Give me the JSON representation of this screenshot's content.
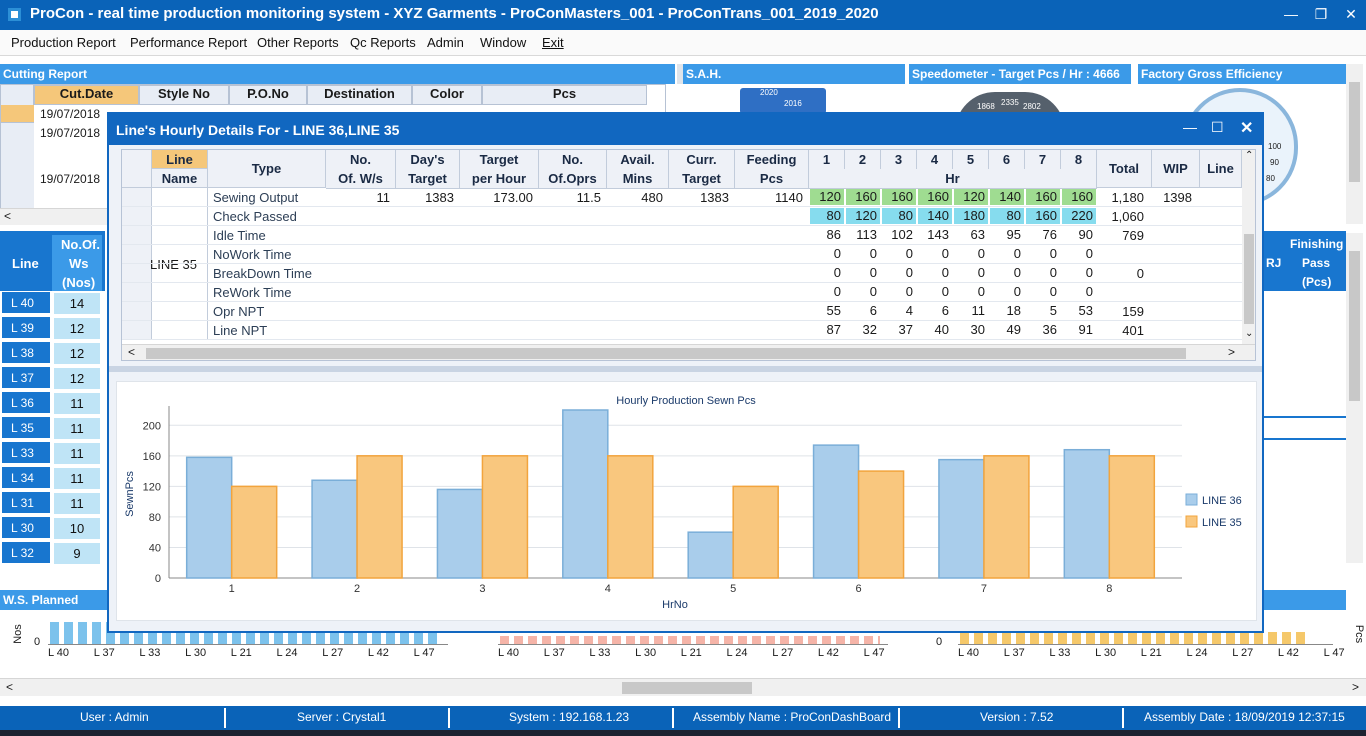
{
  "window": {
    "title": "ProCon - real time production monitoring system - XYZ Garments - ProConMasters_001 - ProConTrans_001_2019_2020"
  },
  "menu": [
    "Production Report",
    "Performance Report",
    "Other Reports",
    "Qc Reports",
    "Admin",
    "Window",
    "Exit"
  ],
  "panels": {
    "cutting_report": "Cutting Report",
    "sah": "S.A.H.",
    "speedometer": "Speedometer - Target Pcs / Hr : 4666",
    "factory_eff": "Factory Gross Efficiency",
    "ws_planned": "W.S. Planned",
    "finishing": "Finishing"
  },
  "cutting": {
    "headers": [
      "Cut.Date",
      "Style No",
      "P.O.No",
      "Destination",
      "Color",
      "Pcs"
    ],
    "dates": [
      "19/07/2018",
      "19/07/2018",
      "19/07/2018"
    ]
  },
  "left_table": {
    "head": {
      "line": "Line",
      "no_of": "No.Of.",
      "ws": "Ws",
      "nos": "(Nos)"
    },
    "rows": [
      {
        "line": "L 40",
        "ws": "14"
      },
      {
        "line": "L 39",
        "ws": "12"
      },
      {
        "line": "L 38",
        "ws": "12"
      },
      {
        "line": "L 37",
        "ws": "12"
      },
      {
        "line": "L 36",
        "ws": "11"
      },
      {
        "line": "L 35",
        "ws": "11"
      },
      {
        "line": "L 33",
        "ws": "11"
      },
      {
        "line": "L 34",
        "ws": "11"
      },
      {
        "line": "L 31",
        "ws": "11"
      },
      {
        "line": "L 30",
        "ws": "10"
      },
      {
        "line": "L 32",
        "ws": "9"
      }
    ]
  },
  "finishing_head": {
    "rj": "RJ",
    "pass": "Pass",
    "pcs": "(Pcs)"
  },
  "gauges": {
    "sah_val1": "2020",
    "sah_val2": "2016",
    "speedo_ticks": [
      "1868",
      "2335",
      "2802"
    ],
    "eff_ticks": [
      "100",
      "90",
      "80"
    ]
  },
  "modal": {
    "title": "Line's Hourly Details For - LINE 36,LINE 35",
    "headers": {
      "line": "Line",
      "name": "Name",
      "type": "Type",
      "no1": "No.",
      "ofws": "Of. W/s",
      "days": "Day's",
      "target": "Target",
      "target2": "Target",
      "perhour": "per Hour",
      "no2": "No.",
      "ofoprs": "Of.Oprs",
      "avail": "Avail.",
      "mins": "Mins",
      "curr": "Curr.",
      "target3": "Target",
      "feeding": "Feeding",
      "pcs": "Pcs",
      "hours": [
        "1",
        "2",
        "3",
        "4",
        "5",
        "6",
        "7",
        "8"
      ],
      "hr": "Hr",
      "total": "Total",
      "wip": "WIP",
      "line_trunc": "Line"
    },
    "line_name": "LINE 35",
    "rows": [
      {
        "type": "Sewing Output",
        "ofws": "11",
        "days_target": "1383",
        "per_hour": "173.00",
        "oprs": "11.5",
        "mins": "480",
        "curr_target": "1383",
        "feeding": "1140",
        "hours": [
          "120",
          "160",
          "160",
          "160",
          "120",
          "140",
          "160",
          "160"
        ],
        "total": "1,180",
        "wip": "1398",
        "style": "g"
      },
      {
        "type": "Check Passed",
        "ofws": "",
        "days_target": "",
        "per_hour": "",
        "oprs": "",
        "mins": "",
        "curr_target": "",
        "feeding": "",
        "hours": [
          "80",
          "120",
          "80",
          "140",
          "180",
          "80",
          "160",
          "220"
        ],
        "total": "1,060",
        "wip": "",
        "style": "b"
      },
      {
        "type": "Idle Time",
        "ofws": "",
        "days_target": "",
        "per_hour": "",
        "oprs": "",
        "mins": "",
        "curr_target": "",
        "feeding": "",
        "hours": [
          "86",
          "113",
          "102",
          "143",
          "63",
          "95",
          "76",
          "90"
        ],
        "total": "769",
        "wip": "",
        "style": ""
      },
      {
        "type": "NoWork Time",
        "ofws": "",
        "days_target": "",
        "per_hour": "",
        "oprs": "",
        "mins": "",
        "curr_target": "",
        "feeding": "",
        "hours": [
          "0",
          "0",
          "0",
          "0",
          "0",
          "0",
          "0",
          "0"
        ],
        "total": "",
        "wip": "",
        "style": ""
      },
      {
        "type": "BreakDown Time",
        "ofws": "",
        "days_target": "",
        "per_hour": "",
        "oprs": "",
        "mins": "",
        "curr_target": "",
        "feeding": "",
        "hours": [
          "0",
          "0",
          "0",
          "0",
          "0",
          "0",
          "0",
          "0"
        ],
        "total": "0",
        "wip": "",
        "style": ""
      },
      {
        "type": "ReWork Time",
        "ofws": "",
        "days_target": "",
        "per_hour": "",
        "oprs": "",
        "mins": "",
        "curr_target": "",
        "feeding": "",
        "hours": [
          "0",
          "0",
          "0",
          "0",
          "0",
          "0",
          "0",
          "0"
        ],
        "total": "",
        "wip": "",
        "style": ""
      },
      {
        "type": "Opr NPT",
        "ofws": "",
        "days_target": "",
        "per_hour": "",
        "oprs": "",
        "mins": "",
        "curr_target": "",
        "feeding": "",
        "hours": [
          "55",
          "6",
          "4",
          "6",
          "11",
          "18",
          "5",
          "53"
        ],
        "total": "159",
        "wip": "",
        "style": ""
      },
      {
        "type": "Line NPT",
        "ofws": "",
        "days_target": "",
        "per_hour": "",
        "oprs": "",
        "mins": "",
        "curr_target": "",
        "feeding": "",
        "hours": [
          "87",
          "32",
          "37",
          "40",
          "30",
          "49",
          "36",
          "91"
        ],
        "total": "401",
        "wip": "",
        "style": ""
      }
    ]
  },
  "chart_data": {
    "type": "bar",
    "title": "Hourly Production Sewn Pcs",
    "xlabel": "HrNo",
    "ylabel": "SewnPcs",
    "categories": [
      "1",
      "2",
      "3",
      "4",
      "5",
      "6",
      "7",
      "8"
    ],
    "ylim": [
      0,
      220
    ],
    "yticks": [
      0,
      40,
      80,
      120,
      160,
      200
    ],
    "legend_position": "right",
    "series": [
      {
        "name": "LINE 36",
        "color": "#a9cdeb",
        "stroke": "#7aaed8",
        "values": [
          158,
          128,
          116,
          220,
          60,
          174,
          155,
          168
        ]
      },
      {
        "name": "LINE 35",
        "color": "#f9c77e",
        "stroke": "#f2a43d",
        "values": [
          120,
          160,
          160,
          160,
          120,
          140,
          160,
          160
        ]
      }
    ]
  },
  "bottom_axis_labels": [
    "L 40",
    "L 37",
    "L 33",
    "L 30",
    "L 21",
    "L 24",
    "L 27",
    "L 42",
    "L 47"
  ],
  "bottom": {
    "nos": "Nos",
    "zero": "0",
    "pcs": "Pcs"
  },
  "status": {
    "user": "User : Admin",
    "server": "Server : Crystal1",
    "system": "System : 192.168.1.23",
    "assembly": "Assembly Name : ProConDashBoard",
    "version": "Version : 7.52",
    "assembly_date": "Assembly Date : 18/09/2019 12:37:15"
  },
  "colors": {
    "titlebar": "#0a63b8",
    "accent": "#3b9ae8",
    "left_rows": "#1876cf"
  }
}
